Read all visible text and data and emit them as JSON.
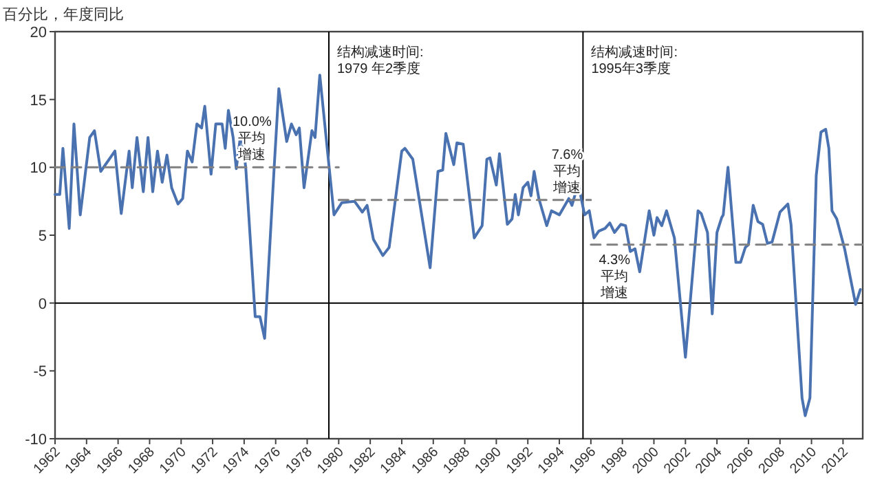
{
  "chart_data": {
    "type": "line",
    "ylabel": "百分比，年度同比",
    "xlim": [
      1962,
      2013.25
    ],
    "ylim": [
      -10,
      20
    ],
    "xticks": [
      1962,
      1964,
      1966,
      1968,
      1970,
      1972,
      1974,
      1976,
      1978,
      1980,
      1982,
      1984,
      1986,
      1988,
      1990,
      1992,
      1994,
      1996,
      1998,
      2000,
      2002,
      2004,
      2006,
      2008,
      2010,
      2012
    ],
    "yticks": [
      -10,
      -5,
      0,
      5,
      10,
      15,
      20
    ],
    "grid": false,
    "series": [
      {
        "color": "#4a72b0",
        "line_style": "solid",
        "x": [
          1962.0,
          1962.3,
          1962.5,
          1962.9,
          1963.2,
          1963.6,
          1964.2,
          1964.5,
          1964.9,
          1965.8,
          1966.2,
          1966.7,
          1966.9,
          1967.2,
          1967.6,
          1967.9,
          1968.2,
          1968.5,
          1968.8,
          1969.1,
          1969.4,
          1969.8,
          1970.1,
          1970.4,
          1970.7,
          1971.0,
          1971.3,
          1971.5,
          1971.9,
          1972.2,
          1972.6,
          1972.8,
          1973.0,
          1973.3,
          1973.5,
          1973.8,
          1974.1,
          1974.7,
          1975.0,
          1975.3,
          1975.9,
          1976.2,
          1976.7,
          1977.0,
          1977.3,
          1977.5,
          1977.8,
          1978.3,
          1978.5,
          1978.8,
          1979.2,
          1979.7,
          1980.2,
          1981.0,
          1981.5,
          1981.8,
          1982.2,
          1982.8,
          1983.2,
          1984.0,
          1984.2,
          1984.7,
          1985.8,
          1986.3,
          1986.6,
          1986.8,
          1987.3,
          1987.5,
          1987.9,
          1988.6,
          1989.1,
          1989.4,
          1989.6,
          1990.0,
          1990.2,
          1990.7,
          1991.0,
          1991.2,
          1991.4,
          1991.7,
          1992.0,
          1992.2,
          1992.4,
          1992.7,
          1993.2,
          1993.5,
          1994.0,
          1994.6,
          1994.8,
          1995.2,
          1995.6,
          1995.9,
          1996.2,
          1996.5,
          1996.9,
          1997.2,
          1997.5,
          1997.9,
          1998.2,
          1998.5,
          1998.8,
          1999.1,
          1999.7,
          2000.0,
          2000.2,
          2000.5,
          2000.8,
          2001.3,
          2002.0,
          2002.8,
          2003.0,
          2003.4,
          2003.7,
          2004.0,
          2004.3,
          2004.4,
          2004.7,
          2005.2,
          2005.5,
          2005.8,
          2006.0,
          2006.3,
          2006.6,
          2006.9,
          2007.2,
          2007.5,
          2008.0,
          2008.5,
          2008.7,
          2009.4,
          2009.6,
          2009.9,
          2010.3,
          2010.6,
          2010.9,
          2011.1,
          2011.3,
          2011.6,
          2012.1,
          2012.8,
          2013.1
        ],
        "values": [
          8.0,
          8.0,
          11.4,
          5.5,
          13.2,
          6.5,
          12.2,
          12.7,
          9.7,
          11.2,
          6.6,
          11.2,
          8.5,
          12.2,
          8.2,
          12.2,
          8.2,
          11.2,
          8.9,
          10.9,
          8.5,
          7.3,
          7.7,
          11.2,
          10.4,
          13.2,
          12.9,
          14.5,
          9.5,
          13.2,
          13.2,
          11.4,
          14.2,
          12.2,
          9.9,
          12.6,
          10.0,
          -1.0,
          -1.0,
          -2.6,
          9.9,
          15.8,
          11.9,
          13.2,
          12.4,
          12.9,
          8.5,
          12.7,
          12.2,
          16.8,
          12.2,
          6.5,
          7.4,
          7.5,
          6.7,
          7.2,
          4.7,
          3.5,
          4.1,
          11.2,
          11.4,
          10.6,
          2.6,
          9.7,
          9.8,
          12.5,
          10.2,
          11.8,
          11.7,
          4.8,
          5.7,
          10.6,
          10.7,
          8.7,
          11.0,
          5.8,
          6.2,
          8.0,
          6.5,
          8.5,
          8.9,
          7.9,
          9.7,
          7.7,
          5.7,
          6.8,
          6.5,
          7.7,
          7.2,
          8.8,
          6.5,
          6.8,
          4.8,
          5.3,
          5.5,
          5.9,
          5.2,
          5.8,
          5.7,
          3.8,
          4.0,
          2.3,
          6.8,
          5.0,
          6.3,
          5.7,
          6.8,
          4.8,
          -4.0,
          6.8,
          6.6,
          5.2,
          -0.8,
          5.2,
          6.3,
          6.5,
          10.0,
          3.0,
          3.0,
          4.1,
          4.3,
          7.2,
          6.0,
          5.8,
          4.4,
          4.5,
          6.7,
          7.3,
          5.8,
          -7.0,
          -8.3,
          -7.0,
          9.4,
          12.6,
          12.8,
          11.4,
          6.8,
          6.2,
          4.0,
          -0.1,
          1.0
        ]
      },
      {
        "color": "#808080",
        "line_style": "dashed",
        "x": [
          1962,
          1980
        ],
        "values": [
          10.0,
          10.0
        ]
      },
      {
        "color": "#808080",
        "line_style": "dashed",
        "x": [
          1980,
          1996
        ],
        "values": [
          7.6,
          7.6
        ]
      },
      {
        "color": "#808080",
        "line_style": "dashed",
        "x": [
          1996,
          2013.25
        ],
        "values": [
          4.3,
          4.3
        ]
      }
    ],
    "ref_lines": [
      {
        "axis": "y",
        "value": 0,
        "color": "#000000"
      },
      {
        "axis": "x",
        "value": 1979.375,
        "color": "#000000",
        "label": "结构减速时间:\n1979 年2季度"
      },
      {
        "axis": "x",
        "value": 1995.5,
        "color": "#000000",
        "label": "结构减速时间:\n1995年3季度"
      }
    ],
    "annotations": [
      {
        "text": "10.0%\n平均增速",
        "x": 1974.5,
        "y": 10.0
      },
      {
        "text": "7.6%\n平均增速",
        "x": 1994.5,
        "y": 7.6
      },
      {
        "text": "4.3%\n平均增速",
        "x": 1997.5,
        "y": 4.3
      }
    ]
  }
}
